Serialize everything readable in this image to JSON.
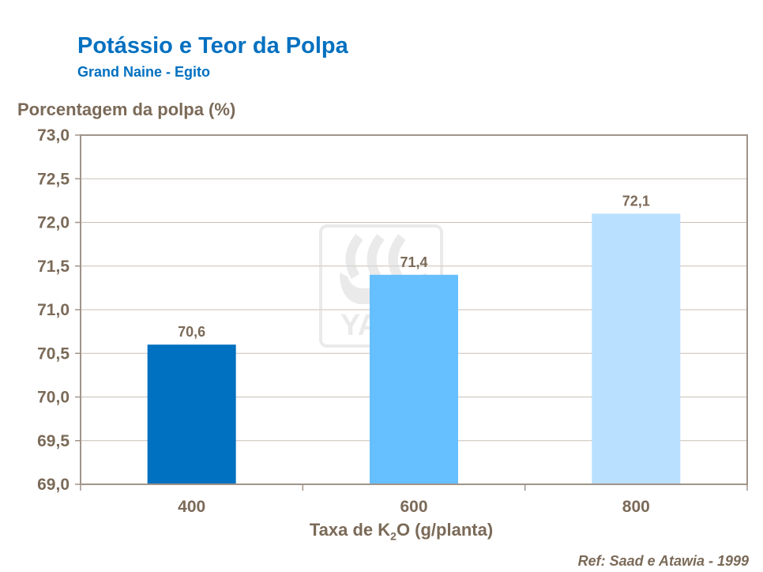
{
  "chart_data": {
    "type": "bar",
    "title": "Potássio e Teor da Polpa",
    "subtitle": "Grand Naine - Egito",
    "ylabel": "Porcentagem da polpa (%)",
    "xlabel_parts": [
      "Taxa de K",
      "2",
      "O (g/planta)"
    ],
    "categories": [
      "400",
      "600",
      "800"
    ],
    "values": [
      70.6,
      71.4,
      72.1
    ],
    "value_labels": [
      "70,6",
      "71,4",
      "72,1"
    ],
    "colors": [
      "#0070C0",
      "#66BFFF",
      "#B9E0FF"
    ],
    "ylim": [
      69.0,
      73.0
    ],
    "yticks": [
      69.0,
      69.5,
      70.0,
      70.5,
      71.0,
      71.5,
      72.0,
      72.5,
      73.0
    ],
    "ytick_labels": [
      "69,0",
      "69,5",
      "70,0",
      "70,5",
      "71,0",
      "71,5",
      "72,0",
      "72,5",
      "73,0"
    ],
    "grid": true,
    "legend": "none"
  },
  "reference": "Ref: Saad e Atawia - 1999",
  "watermark": "YARA"
}
